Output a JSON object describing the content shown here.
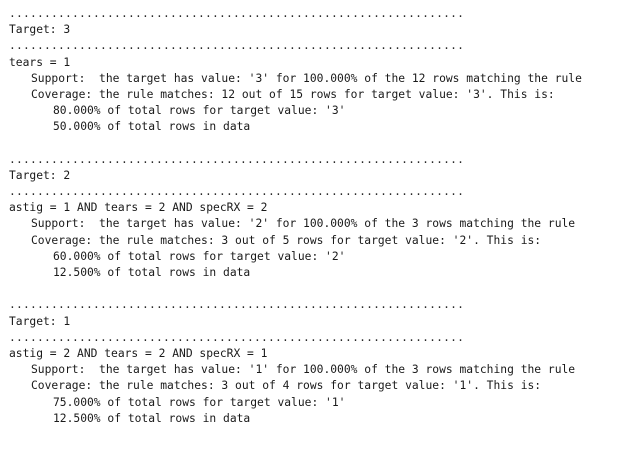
{
  "separator": ".................................................................",
  "blocks": [
    {
      "target": "Target: 3",
      "rule": "tears = 1",
      "support": "Support:  the target has value: '3' for 100.000% of the 12 rows matching the rule",
      "coverage": "Coverage: the rule matches: 12 out of 15 rows for target value: '3'. This is:",
      "pct_target": "80.000% of total rows for target value: '3'",
      "pct_total": "50.000% of total rows in data"
    },
    {
      "target": "Target: 2",
      "rule": "astig = 1 AND tears = 2 AND specRX = 2",
      "support": "Support:  the target has value: '2' for 100.000% of the 3 rows matching the rule",
      "coverage": "Coverage: the rule matches: 3 out of 5 rows for target value: '2'. This is:",
      "pct_target": "60.000% of total rows for target value: '2'",
      "pct_total": "12.500% of total rows in data"
    },
    {
      "target": "Target: 1",
      "rule": "astig = 2 AND tears = 2 AND specRX = 1",
      "support": "Support:  the target has value: '1' for 100.000% of the 3 rows matching the rule",
      "coverage": "Coverage: the rule matches: 3 out of 4 rows for target value: '1'. This is:",
      "pct_target": "75.000% of total rows for target value: '1'",
      "pct_total": "12.500% of total rows in data"
    }
  ]
}
